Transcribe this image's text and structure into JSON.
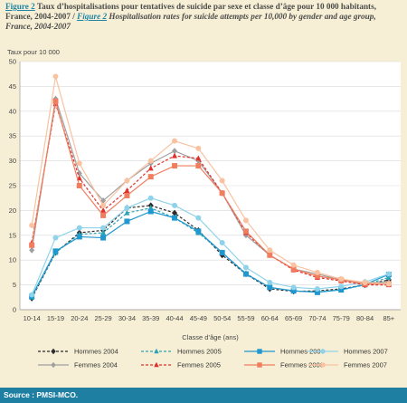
{
  "figure": {
    "tag_fr": "Figure 2",
    "title_fr": " Taux d’hospitalisations pour tentatives de suicide par sexe et classe d’âge pour 10 000 habitants, France, 2004-2007 / ",
    "tag_en": "Figure 2",
    "title_en": " Hospitalisation rates for suicide attempts per 10,000 by gender and age group, France, 2004-2007"
  },
  "source": "Source : PMSI-MCO.",
  "colors": {
    "background": "#f6efd5",
    "plot_background": "#ffffff",
    "grid": "#d9d9d9",
    "source_bar": "#1f7fa3",
    "title_accent": "#1f84a6"
  },
  "chart_data": {
    "type": "line",
    "ylabel": "Taux pour 10 000",
    "xlabel": "Classe d’âge (ans)",
    "ylim": [
      0,
      50
    ],
    "yticks": [
      0,
      5,
      10,
      15,
      20,
      25,
      30,
      35,
      40,
      45,
      50
    ],
    "grid": "horizontal",
    "legend_position": "bottom",
    "categories": [
      "10-14",
      "15-19",
      "20-24",
      "25-29",
      "30-34",
      "35-39",
      "40-44",
      "45-49",
      "50-54",
      "55-59",
      "60-64",
      "65-69",
      "70-74",
      "75-79",
      "80-84",
      "85+"
    ],
    "series": [
      {
        "name": "Hommes 2004",
        "color": "#2b2b2b",
        "dash": "3,2",
        "marker": "diamond",
        "values": [
          2.3,
          11.5,
          15.5,
          16,
          20.5,
          21,
          19.5,
          16,
          11,
          7.2,
          4.2,
          3.7,
          3.8,
          4.2,
          5,
          6
        ]
      },
      {
        "name": "Hommes 2005",
        "color": "#2ba3b5",
        "dash": "3,2",
        "marker": "triangle",
        "values": [
          2.5,
          11.5,
          15.2,
          15.5,
          19.5,
          20.5,
          18.5,
          15.5,
          11.5,
          7.3,
          4.5,
          3.8,
          3.6,
          4.0,
          5.0,
          6.5
        ]
      },
      {
        "name": "Hommes 2006",
        "color": "#1f97cf",
        "dash": "",
        "marker": "square",
        "values": [
          2.7,
          11.8,
          14.7,
          14.5,
          17.8,
          19.8,
          18.5,
          15.8,
          11.5,
          7.2,
          4.5,
          3.8,
          3.5,
          4.0,
          5.1,
          7.1
        ]
      },
      {
        "name": "Hommes 2007",
        "color": "#8ed3ea",
        "dash": "",
        "marker": "circle",
        "values": [
          3.0,
          14.5,
          16.5,
          16.5,
          20.5,
          22.5,
          21,
          18.5,
          13.5,
          8.5,
          5.5,
          4.5,
          4.2,
          4.7,
          5.6,
          7.2
        ]
      },
      {
        "name": "Femmes 2004",
        "color": "#a0a0a0",
        "dash": "",
        "marker": "diamond",
        "values": [
          12,
          42.5,
          27.5,
          22,
          26,
          29.5,
          32,
          30,
          23.5,
          15,
          11,
          8.2,
          7.2,
          6.0,
          5.5,
          5.5
        ]
      },
      {
        "name": "Femmes 2005",
        "color": "#e0302a",
        "dash": "3,2",
        "marker": "triangle",
        "values": [
          13.5,
          41.5,
          26.5,
          20,
          24,
          28.5,
          31,
          30.5,
          23.5,
          15.5,
          11,
          8,
          6.5,
          5.8,
          5.0,
          5.0
        ]
      },
      {
        "name": "Femmes 2006",
        "color": "#f07e5e",
        "dash": "",
        "marker": "square",
        "values": [
          13.0,
          42,
          25,
          19,
          23,
          26.8,
          29,
          29,
          23.5,
          15.8,
          11,
          8.2,
          6.8,
          6.0,
          5.2,
          5.2
        ]
      },
      {
        "name": "Femmes 2007",
        "color": "#f9c3a1",
        "dash": "",
        "marker": "circle",
        "values": [
          17,
          47,
          29.5,
          21,
          26,
          30,
          34,
          32.5,
          26,
          18,
          12,
          9,
          7.5,
          6.2,
          5.5,
          5.2
        ]
      }
    ]
  }
}
